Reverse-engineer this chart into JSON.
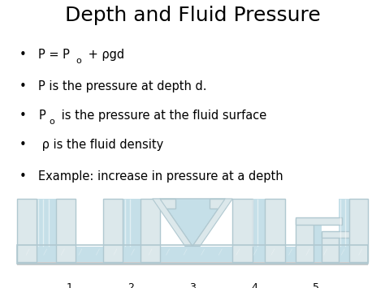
{
  "title": "Depth and Fluid Pressure",
  "title_fontsize": 18,
  "background_color": "#ffffff",
  "text_color": "#000000",
  "bullet_fontsize": 10.5,
  "axis_ticks": [
    1,
    2,
    3,
    4,
    5
  ],
  "water_color": "#c5dfe8",
  "wall_color": "#dce8eb",
  "wall_edge": "#b0c8d0",
  "shadow_color": "#cccccc",
  "fig_width": 4.74,
  "fig_height": 3.55,
  "dpi": 100
}
